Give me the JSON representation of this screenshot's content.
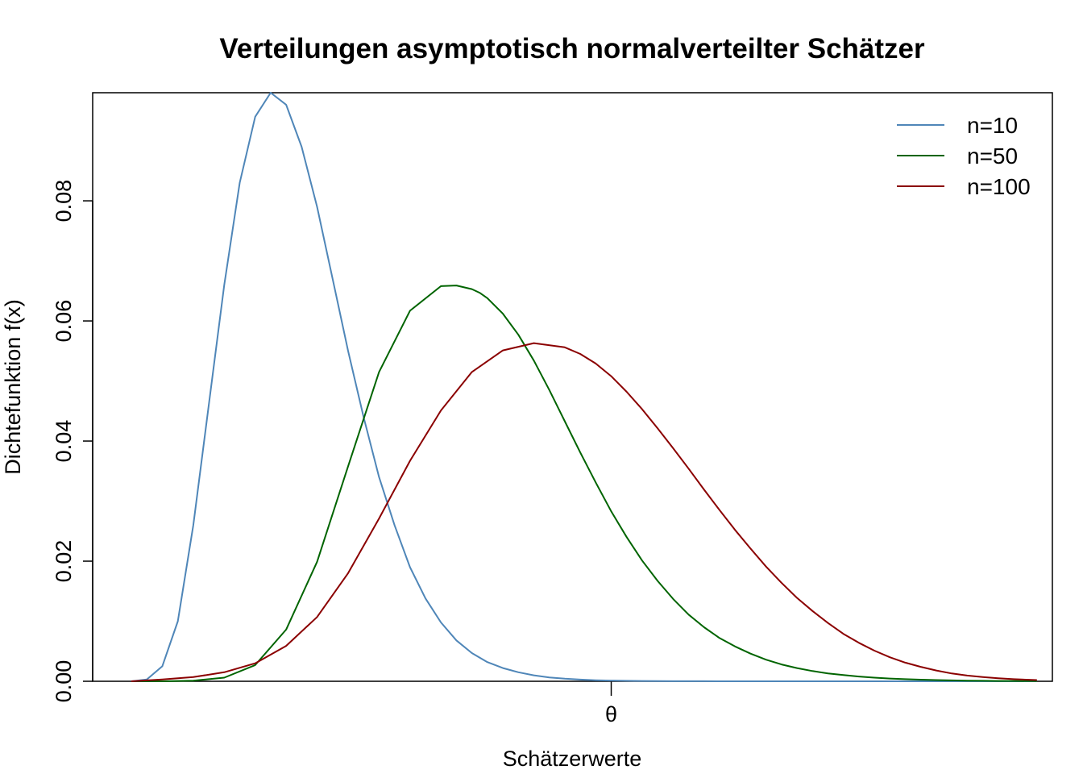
{
  "chart_data": {
    "type": "line",
    "title": "Verteilungen asymptotisch normalverteilter Schätzer",
    "xlabel": "Schätzerwerte",
    "ylabel": "Dichtefunktion f(x)",
    "xlim": [
      -0.2,
      12.2
    ],
    "ylim": [
      0,
      0.098
    ],
    "x_ticks": [
      {
        "value": 6.5,
        "label": "θ"
      }
    ],
    "y_ticks": [
      {
        "value": 0.0,
        "label": "0.00"
      },
      {
        "value": 0.02,
        "label": "0.02"
      },
      {
        "value": 0.04,
        "label": "0.04"
      },
      {
        "value": 0.06,
        "label": "0.06"
      },
      {
        "value": 0.08,
        "label": "0.08"
      }
    ],
    "grid": false,
    "legend_position": "top-right",
    "series": [
      {
        "name": "n=10",
        "color": "#4f86b8",
        "x": [
          0.3,
          0.5,
          0.7,
          0.9,
          1.1,
          1.3,
          1.5,
          1.7,
          1.9,
          2.1,
          2.3,
          2.5,
          2.7,
          2.9,
          3.1,
          3.3,
          3.5,
          3.7,
          3.9,
          4.1,
          4.3,
          4.5,
          4.7,
          4.9,
          5.1,
          5.3,
          5.5,
          5.7,
          5.9,
          6.1,
          6.3,
          6.5,
          6.7,
          6.9,
          7.1,
          7.3,
          7.5,
          7.7,
          7.9,
          8.1,
          8.5,
          9.0,
          9.5,
          10.0,
          10.5,
          11.0,
          11.5,
          12.0
        ],
        "y": [
          0.0,
          0.0003,
          0.0025,
          0.01,
          0.026,
          0.046,
          0.066,
          0.083,
          0.094,
          0.098,
          0.096,
          0.089,
          0.079,
          0.067,
          0.055,
          0.044,
          0.034,
          0.026,
          0.019,
          0.0138,
          0.0098,
          0.0068,
          0.0047,
          0.0032,
          0.0022,
          0.0015,
          0.001,
          0.00065,
          0.00043,
          0.00028,
          0.00018,
          0.00012,
          8e-05,
          5e-05,
          3e-05,
          2e-05,
          1e-05,
          1e-05,
          0.0,
          0.0,
          0.0,
          0.0,
          0.0,
          0.0,
          0.0,
          0.0,
          0.0,
          0.0
        ]
      },
      {
        "name": "n=50",
        "color": "#006400",
        "x": [
          0.3,
          0.7,
          1.1,
          1.5,
          1.9,
          2.3,
          2.7,
          3.1,
          3.5,
          3.9,
          4.3,
          4.5,
          4.7,
          4.8,
          4.9,
          5.1,
          5.3,
          5.5,
          5.7,
          5.9,
          6.1,
          6.3,
          6.5,
          6.7,
          6.9,
          7.1,
          7.3,
          7.5,
          7.7,
          7.9,
          8.1,
          8.3,
          8.5,
          8.7,
          8.9,
          9.1,
          9.3,
          9.5,
          9.7,
          9.9,
          10.1,
          10.3,
          10.5,
          10.7,
          10.9,
          11.1,
          11.3,
          11.5,
          11.7,
          12.0
        ],
        "y": [
          0.0,
          0.0,
          0.0001,
          0.0006,
          0.0027,
          0.0086,
          0.0199,
          0.0358,
          0.0515,
          0.0617,
          0.0658,
          0.0659,
          0.0653,
          0.0647,
          0.0638,
          0.0612,
          0.0577,
          0.0534,
          0.0485,
          0.0433,
          0.0381,
          0.0331,
          0.0283,
          0.024,
          0.0201,
          0.0167,
          0.0137,
          0.0111,
          0.009,
          0.0072,
          0.0058,
          0.0046,
          0.0036,
          0.0028,
          0.0022,
          0.0017,
          0.0013,
          0.00103,
          0.00079,
          0.0006,
          0.00046,
          0.00035,
          0.00027,
          0.0002,
          0.00015,
          0.00011,
          8e-05,
          6e-05,
          5e-05,
          3e-05
        ]
      },
      {
        "name": "n=100",
        "color": "#8b0000",
        "x": [
          0.3,
          0.7,
          1.1,
          1.5,
          1.9,
          2.3,
          2.7,
          3.1,
          3.5,
          3.9,
          4.3,
          4.7,
          5.1,
          5.5,
          5.9,
          6.1,
          6.3,
          6.5,
          6.7,
          6.9,
          7.1,
          7.3,
          7.5,
          7.7,
          7.9,
          8.1,
          8.3,
          8.5,
          8.7,
          8.9,
          9.1,
          9.3,
          9.5,
          9.7,
          9.9,
          10.1,
          10.3,
          10.5,
          10.7,
          10.9,
          11.1,
          11.3,
          11.5,
          11.7,
          12.0
        ],
        "y": [
          0.0,
          0.0003,
          0.0007,
          0.0015,
          0.003,
          0.0059,
          0.0107,
          0.018,
          0.0271,
          0.0367,
          0.0451,
          0.0515,
          0.0551,
          0.0563,
          0.0556,
          0.0545,
          0.0529,
          0.0508,
          0.0482,
          0.0453,
          0.0421,
          0.0388,
          0.0354,
          0.0319,
          0.0285,
          0.0252,
          0.0221,
          0.0191,
          0.0164,
          0.0139,
          0.0117,
          0.0097,
          0.0079,
          0.0064,
          0.0051,
          0.004,
          0.0031,
          0.0024,
          0.0018,
          0.0013,
          0.00095,
          0.0007,
          0.0005,
          0.00035,
          0.0002
        ]
      }
    ]
  }
}
